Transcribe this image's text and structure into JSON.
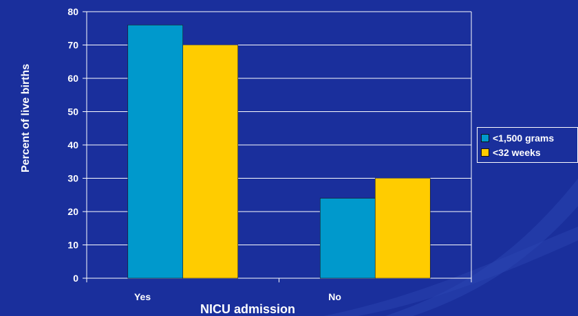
{
  "chart_data": {
    "type": "bar",
    "categories": [
      "Yes",
      "No"
    ],
    "series": [
      {
        "name": "<1,500 grams",
        "values": [
          76,
          24
        ],
        "color": "#0099cc"
      },
      {
        "name": "<32 weeks",
        "values": [
          70,
          30
        ],
        "color": "#ffcc00"
      }
    ],
    "xlabel": "NICU admission",
    "ylabel": "Percent  of live births",
    "ylim": [
      0,
      80
    ],
    "yticks": [
      0,
      10,
      20,
      30,
      40,
      50,
      60,
      70,
      80
    ],
    "grid": true,
    "legend_position": "right"
  },
  "colors": {
    "background": "#1a2f9c",
    "gridline": "#ffffff",
    "text": "#ffffff"
  }
}
